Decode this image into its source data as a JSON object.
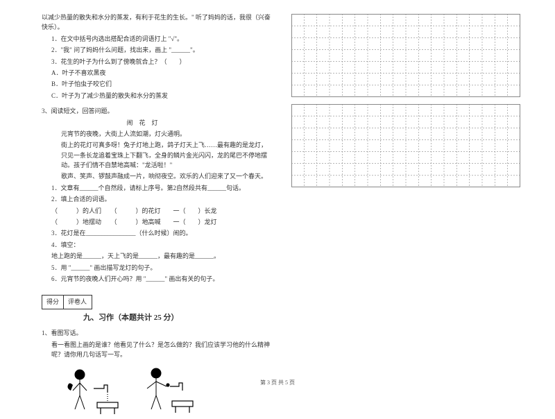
{
  "passage1": {
    "intro": "以减少热量的散失和水分的蒸发，有利于花生的生长。\" 听了妈妈的话，我很（兴奋　快乐）。",
    "q1": "1．在文中括号内选出搭配合适的词语打上 \"√\"。",
    "q2": "2．\"我\" 问了妈妈什么问题，找出来，画上 \"______\"。",
    "q3": "3．花生的叶子为什么到了傍晚就合上？（　　）",
    "optA": "A．叶子不喜欢黑夜",
    "optB": "B．叶子怕虫子咬它们",
    "optC": "C．叶子为了减少热量的散失和水分的蒸发"
  },
  "passage2": {
    "header": "3、阅读短文，回答问题。",
    "title": "闹　花　灯",
    "p1": "元宵节的夜晚，大街上人流如潮，灯火通明。",
    "p2": "街上的花灯可真多呀！兔子灯地上跑，鸽子灯天上飞……最有趣的是龙灯，只见一条长龙追着宝珠上下翻飞，全身的鳞片金光闪闪，龙的尾巴不停地摆动。孩子们情不自禁地高喊：\"龙活啦！\"",
    "p3": "歌声、笑声、锣鼓声融成一片，响彻夜空。欢乐的人们迎来了又一个春天。",
    "q1": "1．文章有______个自然段，请标上序号。第2自然段共有______句话。",
    "q2": "2．填上合适的词语。",
    "q2a": "（　　　）的人们　　（　　　）的花灯　　一（　　）长龙",
    "q2b": "（　　　）地摆动　　（　　　）地高喊　　一（　　）龙灯",
    "q3": "3．花灯是在________________（什么时候）闹的。",
    "q4": "4．填空：",
    "q4a": "地上跑的是______，天上飞的是______，最有趣的是______。",
    "q5": "5．用 \"______\" 画出描写龙灯的句子。",
    "q6": "6．元宵节的夜晚人们开心吗？用 \"______\" 画出有关的句子。"
  },
  "scoreBox": {
    "col1": "得分",
    "col2": "评卷人"
  },
  "section9": {
    "heading": "九、习作（本题共计 25 分）",
    "q1": "1、看图写话。",
    "instr": "看一看图上画的是谁？他看见了什么？是怎么做的？我们应该学习他的什么精神呢？请你用几句话写一写。"
  },
  "grid": {
    "cols": 18,
    "rows": 7,
    "line_color": "#888888",
    "dash": "2,2"
  },
  "footer": "第 3 页 共 5 页"
}
